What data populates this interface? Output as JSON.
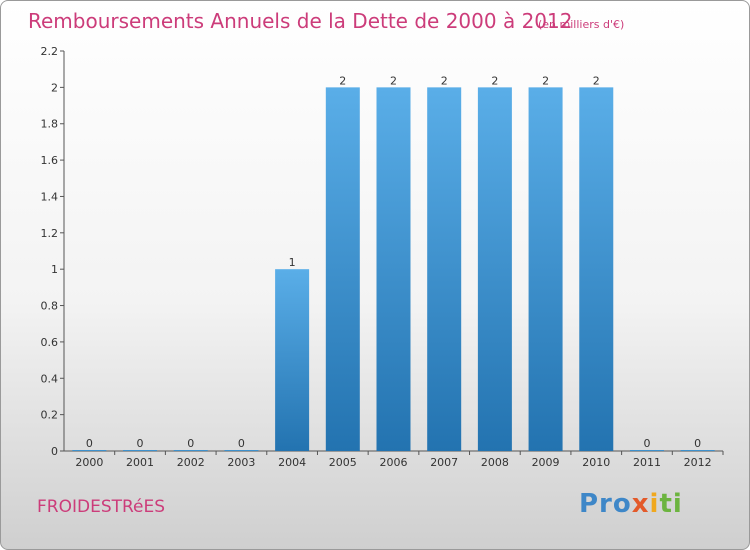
{
  "header": {
    "title": "Remboursements Annuels de la Dette de 2000 à 2012",
    "subtitle": "(en milliers d'€)"
  },
  "footer": {
    "commune": "FROIDESTRéES",
    "logo_parts": [
      "Pro",
      "x",
      "i",
      "ti"
    ]
  },
  "colors": {
    "bar_top": "#5aaee8",
    "bar_bottom": "#2373b0",
    "title": "#cc3c7a"
  },
  "chart_data": {
    "type": "bar",
    "categories": [
      "2000",
      "2001",
      "2002",
      "2003",
      "2004",
      "2005",
      "2006",
      "2007",
      "2008",
      "2009",
      "2010",
      "2011",
      "2012"
    ],
    "values": [
      0,
      0,
      0,
      0,
      1,
      2,
      2,
      2,
      2,
      2,
      2,
      0,
      0
    ],
    "value_labels": [
      "0",
      "0",
      "0",
      "0",
      "1",
      "2",
      "2",
      "2",
      "2",
      "2",
      "2",
      "0",
      "0"
    ],
    "yticks": [
      0,
      0.2,
      0.4,
      0.6,
      0.8,
      1,
      1.2,
      1.4,
      1.6,
      1.8,
      2,
      2.2
    ],
    "ytick_labels": [
      "0",
      "0.2",
      "0.4",
      "0.6",
      "0.8",
      "1",
      "1.2",
      "1.4",
      "1.6",
      "1.8",
      "2",
      "2.2"
    ],
    "ylim": [
      0,
      2.2
    ],
    "xlabel": "",
    "ylabel": "",
    "grid": false
  }
}
